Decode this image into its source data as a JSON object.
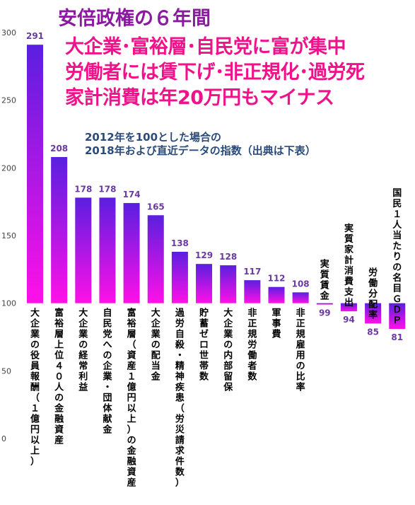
{
  "title": "安倍政権の６年間",
  "headlines": [
    "大企業･富裕層･自民党に富が集中",
    "労働者には賃下げ･非正規化･過労死",
    "家計消費は年20万円もマイナス"
  ],
  "note": [
    "2012年を100とした場合の",
    "2018年および直近データの指数（出典は下表）"
  ],
  "colors": {
    "bar_top": "#5a1fe0",
    "bar_bottom": "#ff10e8",
    "value_label": "#6a3aa0",
    "title": "#8a1a9e",
    "headline": "#f0128a",
    "note": "#2a4a7a"
  },
  "chart_data": {
    "type": "bar",
    "baseline": 100,
    "ylim": [
      0,
      300
    ],
    "yticks": [
      0,
      50,
      100,
      150,
      200,
      250,
      300
    ],
    "grid": false,
    "categories": [
      "大企業の役員報酬（１億円以上）",
      "富裕層上位４０人の金融資産",
      "大企業の経常利益",
      "自民党への企業・団体献金",
      "富裕層（資産１億円以上）の金融資産",
      "大企業の配当金",
      "過労自殺・精神疾患（労災請求件数）",
      "貯蓄ゼロ世帯数",
      "大企業の内部留保",
      "非正規労働者数",
      "軍事費",
      "非正規雇用の比率",
      "実質賃金",
      "実質家計消費支出",
      "労働分配率",
      "国民１人当たりの名目ＧＤＰ"
    ],
    "values": [
      291,
      208,
      178,
      178,
      174,
      165,
      138,
      129,
      128,
      117,
      112,
      108,
      99,
      94,
      85,
      81
    ]
  }
}
